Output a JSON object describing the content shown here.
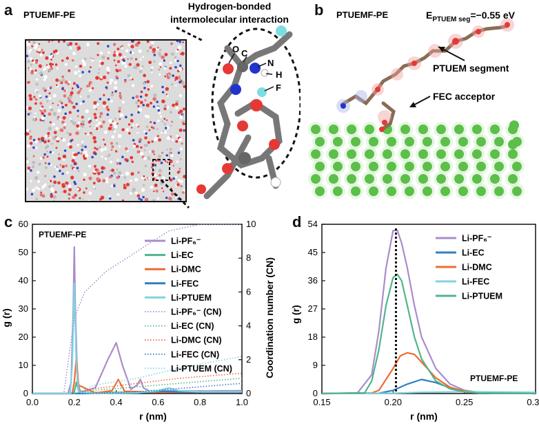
{
  "panels": {
    "a": {
      "letter": "a",
      "label": "PTUEMF-PE",
      "callout_line1": "Hydrogen-bonded",
      "callout_line2": "intermolecular interaction",
      "atoms": [
        "O",
        "C",
        "N",
        "H",
        "F"
      ]
    },
    "b": {
      "letter": "b",
      "label": "PTUEMF-PE",
      "energy_prefix": "E",
      "energy_sub": "PTUEM seg",
      "energy_value": "=−0.55 eV",
      "segment_label": "PTUEM segment",
      "acceptor_label": "FEC acceptor"
    }
  },
  "chart_data": [
    {
      "type": "line",
      "panel": "c",
      "annotation": "PTUEMF-PE",
      "xlabel": "r (nm)",
      "ylabel": "g (r)",
      "y2label": "Coordination number (CN)",
      "xlim": [
        0.0,
        1.0
      ],
      "ylim": [
        0,
        60
      ],
      "y2lim": [
        0,
        10
      ],
      "xticks": [
        "0.0",
        "0.2",
        "0.4",
        "0.6",
        "0.8",
        "1.0"
      ],
      "yticks": [
        "0",
        "10",
        "20",
        "30",
        "40",
        "50",
        "60"
      ],
      "y2ticks": [
        "0",
        "2",
        "4",
        "6",
        "8",
        "10"
      ],
      "legend_position": "top-right",
      "series": [
        {
          "name": "Li-PF₆⁻",
          "color": "#a98ccb",
          "axis": "left",
          "x": [
            0.0,
            0.17,
            0.185,
            0.195,
            0.2,
            0.205,
            0.215,
            0.23,
            0.3,
            0.36,
            0.4,
            0.43,
            0.47,
            0.5,
            0.515,
            0.53,
            0.56,
            0.65,
            0.8,
            1.0
          ],
          "y": [
            0,
            0,
            4,
            30,
            52,
            30,
            4,
            0.5,
            2,
            12,
            18,
            10,
            1.5,
            3,
            5,
            2,
            0.8,
            1,
            0.9,
            1
          ]
        },
        {
          "name": "Li-EC",
          "color": "#4fb58a",
          "axis": "left",
          "x": [
            0.0,
            0.18,
            0.2,
            0.21,
            0.22,
            0.25,
            0.4,
            0.6,
            0.8,
            1.0
          ],
          "y": [
            0,
            0,
            0.5,
            4,
            1,
            0.3,
            0.4,
            0.6,
            0.5,
            0.5
          ]
        },
        {
          "name": "Li-DMC",
          "color": "#ef6a32",
          "axis": "left",
          "x": [
            0.0,
            0.19,
            0.2,
            0.21,
            0.22,
            0.3,
            0.38,
            0.41,
            0.44,
            0.6,
            0.8,
            1.0
          ],
          "y": [
            0,
            0,
            4,
            13,
            3,
            0.2,
            1,
            5,
            0.8,
            0.5,
            0.5,
            0.5
          ]
        },
        {
          "name": "Li-FEC",
          "color": "#2f7fc1",
          "axis": "left",
          "x": [
            0.0,
            0.25,
            0.5,
            0.6,
            0.7,
            0.8,
            1.0
          ],
          "y": [
            0,
            0,
            0.2,
            0.8,
            0.6,
            0.5,
            0.5
          ]
        },
        {
          "name": "Li-PTUEM",
          "color": "#7fd3e0",
          "axis": "left",
          "x": [
            0.0,
            0.18,
            0.19,
            0.2,
            0.21,
            0.22,
            0.3,
            0.5,
            0.6,
            0.65,
            0.7,
            0.8,
            1.0
          ],
          "y": [
            0,
            0,
            10,
            39,
            10,
            0.5,
            0,
            0.3,
            1,
            2,
            1,
            0.6,
            0.6
          ]
        },
        {
          "name": "Li-PF₆⁻ (CN)",
          "color": "#a98ccb",
          "axis": "right",
          "dotted": true,
          "x": [
            0.0,
            0.15,
            0.2,
            0.25,
            0.35,
            0.45,
            0.55,
            0.65,
            0.8,
            1.0
          ],
          "y": [
            0,
            0,
            4.5,
            6.0,
            7.2,
            8.0,
            8.8,
            9.6,
            10,
            10
          ]
        },
        {
          "name": "Li-EC (CN)",
          "color": "#4fb58a",
          "axis": "right",
          "dotted": true,
          "x": [
            0.0,
            0.2,
            0.3,
            0.5,
            0.7,
            1.0
          ],
          "y": [
            0,
            0,
            0.2,
            0.4,
            0.6,
            0.9
          ]
        },
        {
          "name": "Li-DMC (CN)",
          "color": "#ef6a32",
          "axis": "right",
          "dotted": true,
          "x": [
            0.0,
            0.2,
            0.3,
            0.5,
            0.7,
            1.0
          ],
          "y": [
            0,
            0,
            0.3,
            0.6,
            0.9,
            1.2
          ]
        },
        {
          "name": "Li-FEC (CN)",
          "color": "#2f7fc1",
          "axis": "right",
          "dotted": true,
          "x": [
            0.0,
            0.3,
            0.5,
            0.7,
            1.0
          ],
          "y": [
            0,
            0,
            0.1,
            0.3,
            0.6
          ]
        },
        {
          "name": "Li-PTUEM (CN)",
          "color": "#7fd3e0",
          "axis": "right",
          "dotted": true,
          "x": [
            0.0,
            0.2,
            0.3,
            0.5,
            0.7,
            1.0
          ],
          "y": [
            0,
            0,
            0.5,
            0.9,
            1.5,
            2.2
          ]
        }
      ]
    },
    {
      "type": "line",
      "panel": "d",
      "annotation": "PTUEMF-PE",
      "xlabel": "r (nm)",
      "ylabel": "g (r)",
      "xlim": [
        0.15,
        0.3
      ],
      "ylim": [
        0,
        54
      ],
      "xticks": [
        "0.15",
        "0.20",
        "0.25",
        "0.30"
      ],
      "yticks": [
        "0",
        "9",
        "18",
        "27",
        "36",
        "45",
        "54"
      ],
      "vline_x": 0.202,
      "legend_position": "top-right",
      "series": [
        {
          "name": "Li-PF₆⁻",
          "color": "#a98ccb",
          "x": [
            0.15,
            0.175,
            0.185,
            0.19,
            0.195,
            0.2,
            0.203,
            0.206,
            0.21,
            0.215,
            0.22,
            0.23,
            0.24,
            0.25,
            0.26,
            0.28,
            0.3
          ],
          "y": [
            0,
            0.2,
            6,
            20,
            40,
            52,
            52,
            48,
            40,
            28,
            18,
            8,
            3,
            1,
            0.4,
            0.1,
            0
          ]
        },
        {
          "name": "Li-EC",
          "color": "#2f7fc1",
          "x": [
            0.15,
            0.19,
            0.2,
            0.21,
            0.22,
            0.23,
            0.24,
            0.25,
            0.26,
            0.28,
            0.3
          ],
          "y": [
            0,
            0.1,
            1,
            3,
            4.5,
            3.5,
            1.8,
            0.8,
            0.3,
            0.1,
            0
          ]
        },
        {
          "name": "Li-DMC",
          "color": "#ef6a32",
          "x": [
            0.15,
            0.185,
            0.19,
            0.2,
            0.205,
            0.21,
            0.215,
            0.22,
            0.23,
            0.24,
            0.25,
            0.26,
            0.28,
            0.3
          ],
          "y": [
            0,
            0.2,
            1,
            8,
            12,
            13,
            12.5,
            10,
            5,
            2,
            0.8,
            0.3,
            0.1,
            0
          ]
        },
        {
          "name": "Li-FEC",
          "color": "#7fd3e0",
          "x": [
            0.15,
            0.2,
            0.22,
            0.25,
            0.27,
            0.3
          ],
          "y": [
            0,
            0.1,
            0.4,
            0.6,
            0.5,
            0.4
          ]
        },
        {
          "name": "Li-PTUEM",
          "color": "#4fb58a",
          "x": [
            0.15,
            0.18,
            0.185,
            0.19,
            0.195,
            0.2,
            0.203,
            0.206,
            0.21,
            0.215,
            0.22,
            0.23,
            0.24,
            0.25,
            0.26,
            0.28,
            0.3
          ],
          "y": [
            0,
            0.2,
            4,
            14,
            28,
            37,
            38,
            36,
            28,
            18,
            11,
            4,
            1.5,
            0.5,
            0.2,
            0.1,
            0
          ]
        }
      ]
    }
  ]
}
